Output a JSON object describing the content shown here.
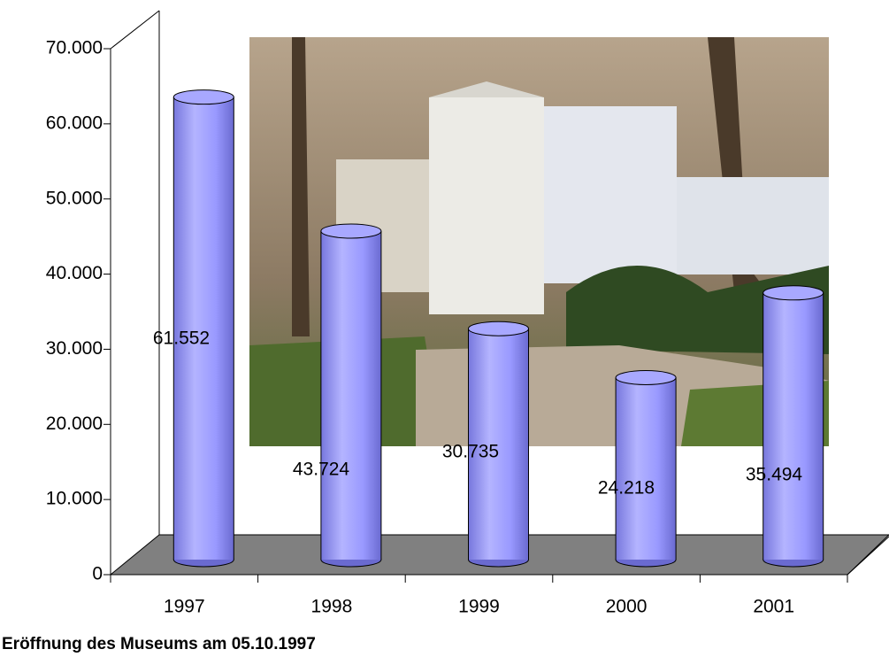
{
  "chart_data": {
    "type": "bar",
    "categories": [
      "1997",
      "1998",
      "1999",
      "2000",
      "2001"
    ],
    "values": [
      61552,
      43724,
      30735,
      24218,
      35494
    ],
    "value_labels": [
      "61.552",
      "43.724",
      "30.735",
      "24.218",
      "35.494"
    ],
    "color": "#9999ff",
    "ylim": [
      0,
      70000
    ],
    "yticks": [
      0,
      {
        "value": 10000,
        "label": "10.000"
      },
      {
        "value": 20000,
        "label": "20.000"
      },
      {
        "value": 30000,
        "label": "30.000"
      },
      {
        "value": 40000,
        "label": "40.000"
      },
      {
        "value": 50000,
        "label": "50.000"
      },
      {
        "value": 60000,
        "label": "60.000"
      },
      {
        "value": 70000,
        "label": "70.000"
      }
    ],
    "footnote": "Eröffnung des Museums am 05.10.1997"
  }
}
